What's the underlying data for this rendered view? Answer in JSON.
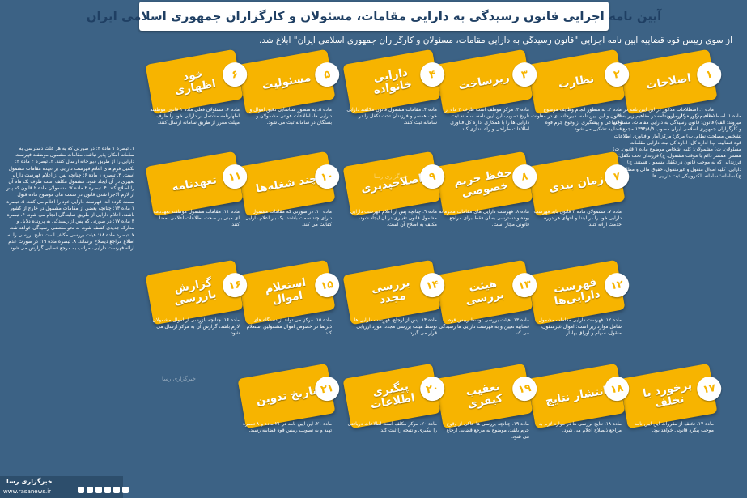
{
  "title": "آیین نامه اجرایی قانون رسیدگی به دارایی مقامات، مسئولان و کارگزاران جمهوری اسلامی ایران",
  "intro": "از سوی رییس قوه قضاییه آیین نامه اجرایی \"قانون رسیدگی به دارایی مقامات، مسئولان و کارگزاران جمهوری اسلامی ایران\" ابلاغ شد.",
  "brand": "خبرگزاری رسا",
  "site": "www.rasanews.ir",
  "colors": {
    "background": "#3c6285",
    "card": "#f7b400",
    "title": "#1f3f63"
  },
  "cards": [
    {
      "num": "۱",
      "label": "اصلاحات",
      "desc": "ماده ۱. اصطلاحات مذکور در این آیین نامه در مفاهیم زیر به کار میروند:"
    },
    {
      "num": "۲",
      "label": "نظارت",
      "desc": "ماده ۲. به منظور انجام وظایف موضوع قانون و این آیین نامه، دبیرخانه ای در معاونت اجتماعی و پیشگیری از وقوع جرم قوه قضاییه تشکیل می شود."
    },
    {
      "num": "۳",
      "label": "زیرساخت",
      "desc": "ماده ۳. مرکز موظف است ظرف ۳ ماه از تاریخ تصویب این آیین نامه، سامانه ثبت دارایی ها را با همکاری اداره کل فناوری اطلاعات طراحی و راه اندازی کند."
    },
    {
      "num": "۴",
      "label": "دارایی خانواده",
      "desc": "ماده ۴. مقامات مشمول قانون مکلفند دارایی خود، همسر و فرزندان تحت تکفل را در سامانه ثبت کنند."
    },
    {
      "num": "۵",
      "label": "مسئولیت",
      "desc": "ماده ۵. به منظور شناسایی دقیق اموال و دارایی ها، اطلاعات هویتی مشمولان و بستگان در سامانه ثبت می شود."
    },
    {
      "num": "۶",
      "label": "خود اظهاری",
      "desc": "ماده ۶. مسئولان فعلی ماده ۱ قانون موظفند اظهارنامه مشتمل بر دارایی خود را ظرف مهلت مقرر از طریق سامانه ارسال کنند."
    },
    {
      "num": "۷",
      "label": "زمان بندی",
      "desc": "ماده ۷. مشمولان ماده ۲ قانون باید فهرست دارایی خود را در ابتدا و انتهای هر دوره خدمت ارائه کنند."
    },
    {
      "num": "۸",
      "label": "حفظ حریم خصوصی",
      "desc": "ماده ۸. فهرست دارایی های مقامات محرمانه بوده و دسترسی به آن فقط برای مراجع قانونی مجاز است."
    },
    {
      "num": "۹",
      "label": "اصلاحپذیری",
      "desc": "ماده ۹. چنانچه پس از اعلام فهرست دارایی مشمول قانون تغییری در آن ایجاد شود، مکلف به اصلاح آن است."
    },
    {
      "num": "۱۰",
      "label": "چند شغله‌ها",
      "desc": "ماده ۱۰. در صورتی که مقامات مشمول دارای چند سمت باشند، یک بار اعلام دارایی کفایت می کند."
    },
    {
      "num": "۱۱",
      "label": "تعهدنامه",
      "desc": "ماده ۱۱. مقامات مشمول موظفند تعهدنامه ای مبنی بر صحت اطلاعات اعلامی امضا کنند."
    },
    {
      "num": "۱۲",
      "label": "فهرست دارایی‌ها",
      "desc": "ماده ۱۲. فهرست دارایی مقامات مشمول شامل موارد زیر است: اموال غیرمنقول، منقول، سهام و اوراق بهادار."
    },
    {
      "num": "۱۳",
      "label": "هیئت بررسی",
      "desc": "ماده ۱۳. هیئت بررسی توسط رییس قوه قضاییه تعیین و به فهرست دارایی ها رسیدگی می کند."
    },
    {
      "num": "۱۴",
      "label": "بررسی مجدد",
      "desc": "ماده ۱۴. پس از ارجاع، فهرست دارایی ها توسط هیئت بررسی مجدداً مورد ارزیابی قرار می گیرد."
    },
    {
      "num": "۱۵",
      "label": "استعلام اموال",
      "desc": "ماده ۱۵. مرکز می تواند از دستگاه های ذیربط در خصوص اموال مشمولین استعلام کند."
    },
    {
      "num": "۱۶",
      "label": "گزارش بازرسی",
      "desc": "ماده ۱۶. چنانچه بازرسی از اموال مشمولان لازم باشد، گزارش آن به مرکز ارسال می شود."
    },
    {
      "num": "۱۷",
      "label": "برخورد با تخلف",
      "desc": "ماده ۱۷. تخلف از مقررات این آیین نامه موجب پیگرد قانونی خواهد بود."
    },
    {
      "num": "۱۸",
      "label": "انتشار نتایج",
      "desc": "ماده ۱۸. نتایج بررسی ها در موارد لازم به مراجع ذیصلاح اعلام می شود."
    },
    {
      "num": "۱۹",
      "label": "تعقیب کیفری",
      "desc": "ماده ۱۹. چنانچه بررسی ها حاکی از وقوع جرم باشد، موضوع به مرجع قضایی ارجاع می شود."
    },
    {
      "num": "۲۰",
      "label": "پیگیری اطلاعات",
      "desc": "ماده ۲۰. مرکز مکلف است اطلاعات دریافتی را پیگیری و نتیجه را ثبت کند."
    },
    {
      "num": "۲۱",
      "label": "تاریخ تدوین",
      "desc": "ماده ۲۱. این آیین نامه در ۲۱ ماده و ۸ تبصره تهیه و به تصویب رییس قوه قضاییه رسید."
    }
  ],
  "right_column": "ماده ۱. اصطلاحات مذکور در این آیین نامه در مفاهیم زیر به کار میروند: الف) قانون: قانون رسیدگی به دارایی مقامات، مسئولان و کارگزاران جمهوری اسلامی ایران مصوب ۱۳۹۴/۸/۹ مجمع تشخیص مصلحت نظام. ب) مرکز: مرکز آمار و فناوری اطلاعات قوه قضاییه. پ) اداره کل: اداره کل ثبت دارایی مقامات مسئولان. ت) مشمولان: کلیه اشخاص موضوع ماده ۱ قانون. ث) همسر: همسر دائم یا موقت مشمول. ج) فرزندان تحت تکفل: فرزندانی که به موجب قانون در تکفل مشمول هستند. چ) دارایی: کلیه اموال منقول و غیرمنقول، حقوق مالی و مطالبات. ح) سامانه: سامانه الکترونیکی ثبت دارایی ها.",
  "left_column": "۱. تبصره ۱ ماده ۳: در صورتی که به هر علت دسترسی به سامانه امکان پذیر نباشد، مقامات مشمول موظفند فهرست دارایی را از طریق دبیرخانه ارسال کنند. ۲. تبصره ۲ ماده ۴: تکمیل فرم های اعلام فهرست دارایی بر عهده مقامات مشمول است. ۳. تبصره ۱ ماده ۶: چنانچه پس از اعلام فهرست دارایی تغییری در آن ایجاد شود، مشمول مکلف است ظرف یک ماه آن را اصلاح کند. ۴. تبصره ۲ ماده ۷: مشمولان ماده ۲ قانون که پس از لازم الاجرا شدن قانون در سمت های موضوع ماده قبول سمت کرده اند، فهرست دارایی خود را اعلام می کنند. ۵. تبصره ۱ ماده ۱۳: چنانچه بعضی از مقامات مشمول در خارج از کشور باشند، اعلام دارایی از طریق نمایندگی انجام می شود. ۶. تبصره ۳ ماده ۱۷: در صورتی که پس از رسیدگی به پرونده دلایل و مدارک جدیدی کشف شود، به نحو مقتضی رسیدگی خواهد شد. ۷. تبصره ماده ۱۸: هیئت بررسی مکلف است نتایج بررسی را به اطلاع مراجع ذیصلاح برساند. ۸. تبصره ماده ۱۹: در صورت عدم ارائه فهرست دارایی، مراتب به مرجع قضایی گزارش می شود."
}
